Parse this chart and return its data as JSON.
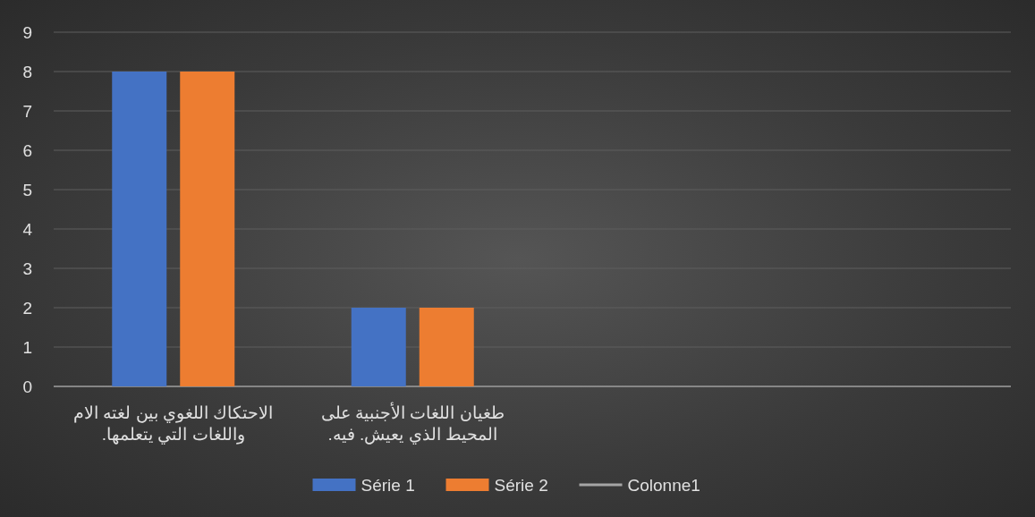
{
  "chart_data": {
    "type": "bar",
    "categories": [
      "الاحتكاك اللغوي بين لغته الام واللغات التي يتعلمها.",
      "طغيان اللغات الأجنبية على المحيط الذي يعيش. فيه.",
      null,
      null
    ],
    "series": [
      {
        "name": "Série 1",
        "color": "#4472c4",
        "values": [
          8,
          2,
          null,
          null
        ]
      },
      {
        "name": "Série 2",
        "color": "#ed7d31",
        "values": [
          8,
          2,
          null,
          null
        ]
      },
      {
        "name": "Colonne1",
        "color": "#a5a5a5",
        "type": "line",
        "values": [
          null,
          null,
          null,
          null
        ]
      }
    ],
    "ylim": [
      0,
      9
    ],
    "yticks": [
      0,
      1,
      2,
      3,
      4,
      5,
      6,
      7,
      8,
      9
    ],
    "grid": "y",
    "legend": "bottom"
  }
}
